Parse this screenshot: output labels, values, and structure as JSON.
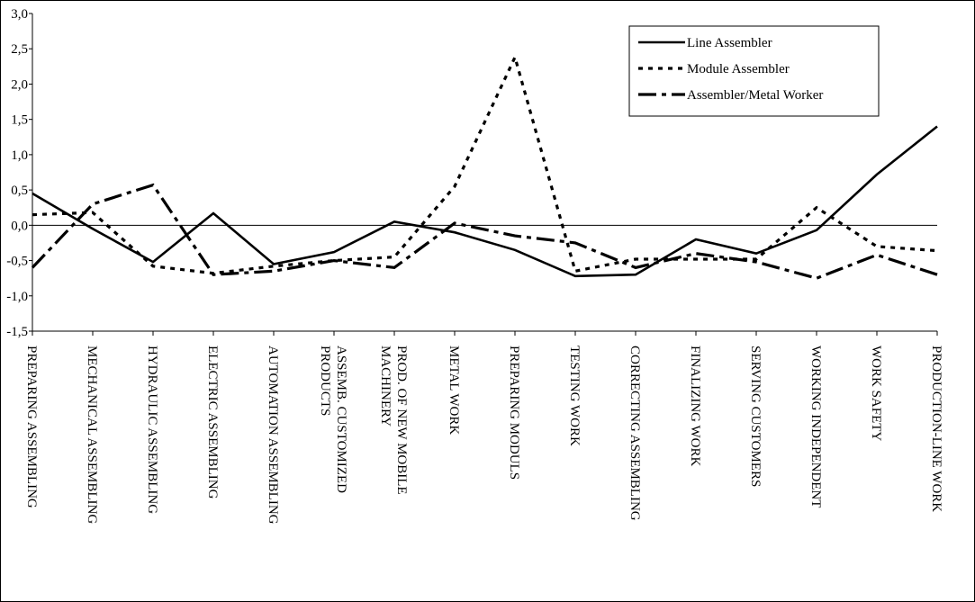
{
  "chart_data": {
    "type": "line",
    "title": "",
    "xlabel": "",
    "ylabel": "",
    "ylim": [
      -1.5,
      3.0
    ],
    "yticks": [
      "3,0",
      "2,5",
      "2,0",
      "1,5",
      "1,0",
      "0,5",
      "0,0",
      "-0,5",
      "-1,0",
      "-1,5"
    ],
    "ytick_values": [
      3.0,
      2.5,
      2.0,
      1.5,
      1.0,
      0.5,
      0.0,
      -0.5,
      -1.0,
      -1.5
    ],
    "grid": false,
    "legend_position": "top-right",
    "categories": [
      [
        "PREPARING ASSEMBLING"
      ],
      [
        "MECHANICAL ASSEMBLING"
      ],
      [
        "HYDRAULIC ASSEMBLING"
      ],
      [
        "ELECTRIC ASSEMBLING"
      ],
      [
        "AUTOMATION ASSEMBLING"
      ],
      [
        "ASSEMB. CUSTOMIZED",
        "PRODUCTS"
      ],
      [
        "PROD. OF NEW MOBILE",
        "MACHINERY"
      ],
      [
        "METAL WORK"
      ],
      [
        "PREPARING MODULS"
      ],
      [
        "TESTING WORK"
      ],
      [
        "CORRECTING ASSEMBLING"
      ],
      [
        "FINALIZING WORK"
      ],
      [
        "SERVING CUSTOMERS"
      ],
      [
        "WORKING INDEPENDENT"
      ],
      [
        "WORK SAFETY"
      ],
      [
        "PRODUCTION-LINE WORK"
      ]
    ],
    "series": [
      {
        "name": "Line Assembler",
        "style": "solid",
        "values": [
          0.45,
          -0.05,
          -0.52,
          0.17,
          -0.55,
          -0.38,
          0.05,
          -0.1,
          -0.35,
          -0.72,
          -0.7,
          -0.2,
          -0.4,
          -0.07,
          0.72,
          1.4
        ]
      },
      {
        "name": "Module Assembler",
        "style": "dotted",
        "values": [
          0.15,
          0.18,
          -0.58,
          -0.68,
          -0.58,
          -0.5,
          -0.45,
          0.55,
          2.38,
          -0.65,
          -0.48,
          -0.48,
          -0.48,
          0.25,
          -0.3,
          -0.36
        ]
      },
      {
        "name": "Assembler/Metal Worker",
        "style": "dash-dot",
        "values": [
          -0.6,
          0.3,
          0.57,
          -0.7,
          -0.65,
          -0.5,
          -0.6,
          0.03,
          -0.15,
          -0.25,
          -0.6,
          -0.4,
          -0.52,
          -0.75,
          -0.42,
          -0.7
        ]
      }
    ],
    "colors": {
      "lines": "#000000",
      "background": "#ffffff"
    }
  }
}
